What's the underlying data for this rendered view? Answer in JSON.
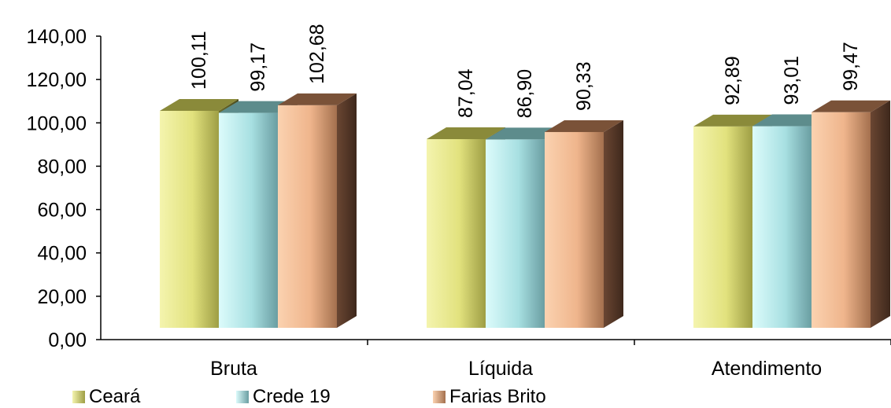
{
  "chart_data": {
    "type": "bar",
    "categories": [
      "Bruta",
      "Líquida",
      "Atendimento"
    ],
    "series": [
      {
        "name": "Ceará",
        "values": [
          100.11,
          87.04,
          92.89
        ],
        "labels": [
          "100,11",
          "87,04",
          "92,89"
        ],
        "color": "#e6e68a",
        "dark": "#8a8a3a"
      },
      {
        "name": "Crede 19",
        "values": [
          99.17,
          86.9,
          93.01
        ],
        "labels": [
          "99,17",
          "86,90",
          "93,01"
        ],
        "color": "#bdf0f0",
        "dark": "#5d8c8c"
      },
      {
        "name": "Farias Brito",
        "values": [
          102.68,
          90.33,
          99.47
        ],
        "labels": [
          "102,68",
          "90,33",
          "99,47"
        ],
        "color": "#f5c09c",
        "dark": "#7a5238"
      }
    ],
    "y_ticks": [
      "0,00",
      "20,00",
      "40,00",
      "60,00",
      "80,00",
      "100,00",
      "120,00",
      "140,00"
    ],
    "ylim": [
      0,
      140
    ],
    "legend_position": "bottom-left",
    "grid": false
  }
}
